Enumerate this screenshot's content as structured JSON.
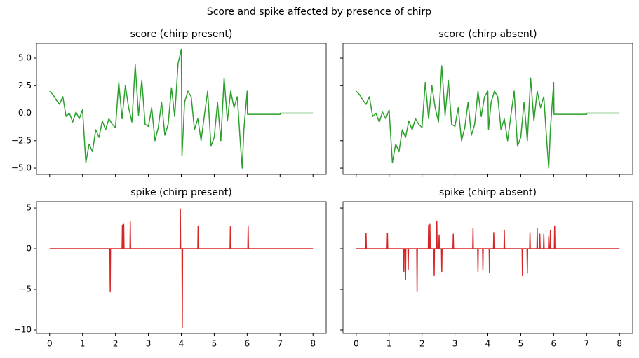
{
  "suptitle": "Score and spike affected by presence of chirp",
  "chart_data": [
    {
      "type": "line",
      "title": "score (chirp present)",
      "xlim": [
        -0.4,
        8.4
      ],
      "ylim": [
        -5.57,
        6.34
      ],
      "xticks": [
        0,
        1,
        2,
        3,
        4,
        5,
        6,
        7,
        8
      ],
      "yticks": [
        {
          "value": -5,
          "label": "−5.0"
        },
        {
          "value": -2.5,
          "label": "−2.5"
        },
        {
          "value": 0,
          "label": "0.0"
        },
        {
          "value": 2.5,
          "label": "2.5"
        },
        {
          "value": 5,
          "label": "5.0"
        }
      ],
      "tick_labels": {
        "x": false,
        "y": true
      },
      "series": [
        {
          "color": "#2ca02c",
          "x": [
            0,
            0.1,
            0.2,
            0.3,
            0.4,
            0.5,
            0.6,
            0.7,
            0.8,
            0.9,
            1.0,
            1.1,
            1.2,
            1.3,
            1.4,
            1.5,
            1.6,
            1.7,
            1.8,
            1.9,
            2.0,
            2.1,
            2.2,
            2.3,
            2.4,
            2.5,
            2.6,
            2.7,
            2.8,
            2.9,
            3.0,
            3.1,
            3.2,
            3.3,
            3.4,
            3.5,
            3.6,
            3.7,
            3.8,
            3.9,
            4.0,
            4.02,
            4.1,
            4.2,
            4.3,
            4.4,
            4.5,
            4.6,
            4.7,
            4.8,
            4.9,
            5.0,
            5.1,
            5.2,
            5.3,
            5.4,
            5.5,
            5.6,
            5.7,
            5.8,
            5.85,
            5.9,
            6.0,
            6.01,
            7.0,
            7.01,
            8.0
          ],
          "values": [
            2.0,
            1.7,
            1.2,
            0.8,
            1.5,
            -0.3,
            0.0,
            -0.8,
            0.1,
            -0.5,
            0.3,
            -4.5,
            -2.8,
            -3.5,
            -1.5,
            -2.2,
            -0.7,
            -1.5,
            -0.5,
            -1.0,
            -1.3,
            2.8,
            -0.5,
            2.5,
            0.5,
            -0.8,
            4.4,
            -0.2,
            3.0,
            -1.0,
            -1.2,
            0.5,
            -2.5,
            -1.3,
            1.0,
            -2.0,
            -1.0,
            2.3,
            -0.3,
            4.5,
            5.8,
            -3.9,
            1.0,
            2.0,
            1.5,
            -1.5,
            -0.5,
            -2.5,
            -0.2,
            2.0,
            -3.0,
            -2.2,
            1.0,
            -2.5,
            3.2,
            -0.7,
            2.0,
            0.5,
            1.5,
            -3.0,
            -5.0,
            -1.5,
            2.0,
            -0.1,
            -0.1,
            0.0,
            0.0
          ]
        }
      ]
    },
    {
      "type": "line",
      "title": "score (chirp absent)",
      "xlim": [
        -0.4,
        8.4
      ],
      "ylim": [
        -5.57,
        6.34
      ],
      "xticks": [
        0,
        1,
        2,
        3,
        4,
        5,
        6,
        7,
        8
      ],
      "yticks": [
        -5,
        -2.5,
        0,
        2.5,
        5
      ],
      "tick_labels": {
        "x": false,
        "y": false
      },
      "series": [
        {
          "color": "#2ca02c",
          "x": [
            0,
            0.1,
            0.2,
            0.3,
            0.4,
            0.5,
            0.6,
            0.7,
            0.8,
            0.9,
            1.0,
            1.1,
            1.2,
            1.3,
            1.4,
            1.5,
            1.6,
            1.7,
            1.8,
            1.9,
            2.0,
            2.1,
            2.2,
            2.3,
            2.4,
            2.5,
            2.6,
            2.7,
            2.8,
            2.9,
            3.0,
            3.1,
            3.2,
            3.3,
            3.4,
            3.5,
            3.6,
            3.7,
            3.8,
            3.9,
            4.0,
            4.02,
            4.1,
            4.2,
            4.3,
            4.4,
            4.5,
            4.6,
            4.7,
            4.8,
            4.9,
            5.0,
            5.1,
            5.2,
            5.3,
            5.4,
            5.5,
            5.6,
            5.7,
            5.8,
            5.85,
            5.9,
            6.0,
            6.01,
            7.0,
            7.01,
            8.0
          ],
          "values": [
            2.0,
            1.7,
            1.2,
            0.8,
            1.5,
            -0.3,
            0.0,
            -0.8,
            0.1,
            -0.5,
            0.3,
            -4.5,
            -2.8,
            -3.5,
            -1.5,
            -2.2,
            -0.7,
            -1.5,
            -0.5,
            -1.0,
            -1.3,
            2.8,
            -0.5,
            2.5,
            0.5,
            -0.8,
            4.3,
            -0.2,
            3.0,
            -1.0,
            -1.2,
            0.5,
            -2.5,
            -1.3,
            1.0,
            -2.0,
            -1.0,
            2.0,
            -0.3,
            1.5,
            2.0,
            -1.5,
            1.0,
            2.0,
            1.5,
            -1.5,
            -0.5,
            -2.5,
            -0.2,
            2.0,
            -3.0,
            -2.2,
            1.0,
            -2.5,
            3.2,
            -0.7,
            2.0,
            0.5,
            1.5,
            -3.0,
            -5.0,
            -1.5,
            2.8,
            -0.1,
            -0.1,
            0.0,
            0.0
          ]
        }
      ]
    },
    {
      "type": "line",
      "title": "spike (chirp present)",
      "xlim": [
        -0.4,
        8.4
      ],
      "ylim": [
        -10.43,
        5.78
      ],
      "xticks": [
        0,
        1,
        2,
        3,
        4,
        5,
        6,
        7,
        8
      ],
      "yticks": [
        {
          "value": -10,
          "label": "−10"
        },
        {
          "value": -5,
          "label": "−5"
        },
        0,
        5
      ],
      "tick_labels": {
        "x": true,
        "y": true
      },
      "series": [
        {
          "color": "#d62728",
          "x": [
            0,
            1.83,
            1.84,
            1.85,
            2.2,
            2.21,
            2.22,
            2.24,
            2.25,
            2.26,
            2.44,
            2.45,
            2.46,
            3.96,
            3.97,
            3.98,
            4.02,
            4.03,
            4.04,
            4.5,
            4.51,
            4.52,
            5.48,
            5.49,
            5.5,
            6.02,
            6.03,
            6.04,
            8
          ],
          "values": [
            0,
            0,
            -5.3,
            0,
            0,
            2.9,
            0,
            0,
            3.0,
            0,
            0,
            3.4,
            0,
            0,
            4.9,
            0,
            0,
            -9.7,
            0,
            0,
            2.8,
            0,
            0,
            2.7,
            0,
            0,
            2.8,
            0,
            0
          ]
        }
      ]
    },
    {
      "type": "line",
      "title": "spike (chirp absent)",
      "xlim": [
        -0.4,
        8.4
      ],
      "ylim": [
        -10.43,
        5.78
      ],
      "xticks": [
        0,
        1,
        2,
        3,
        4,
        5,
        6,
        7,
        8
      ],
      "yticks": [
        -10,
        -5,
        0,
        5
      ],
      "tick_labels": {
        "x": true,
        "y": false
      },
      "series": [
        {
          "color": "#d62728",
          "x": [
            0,
            0.29,
            0.3,
            0.31,
            0.94,
            0.95,
            0.96,
            1.44,
            1.45,
            1.46,
            1.49,
            1.5,
            1.51,
            1.57,
            1.58,
            1.59,
            1.84,
            1.85,
            1.86,
            2.19,
            2.2,
            2.21,
            2.23,
            2.24,
            2.25,
            2.36,
            2.37,
            2.38,
            2.44,
            2.45,
            2.46,
            2.51,
            2.52,
            2.53,
            2.59,
            2.6,
            2.61,
            2.94,
            2.95,
            2.96,
            3.54,
            3.55,
            3.56,
            3.69,
            3.7,
            3.71,
            3.84,
            3.85,
            3.86,
            4.04,
            4.05,
            4.06,
            4.17,
            4.18,
            4.19,
            4.49,
            4.5,
            4.51,
            5.04,
            5.05,
            5.06,
            5.19,
            5.2,
            5.21,
            5.27,
            5.28,
            5.29,
            5.49,
            5.5,
            5.51,
            5.57,
            5.58,
            5.59,
            5.69,
            5.7,
            5.71,
            5.84,
            5.85,
            5.86,
            5.89,
            5.9,
            5.91,
            6.02,
            6.03,
            6.04,
            8
          ],
          "values": [
            0,
            0,
            1.9,
            0,
            0,
            1.9,
            0,
            0,
            -2.8,
            0,
            0,
            -3.8,
            0,
            0,
            -2.6,
            0,
            0,
            -5.3,
            0,
            0,
            2.9,
            0,
            0,
            3.0,
            0,
            0,
            -3.3,
            0,
            0,
            3.4,
            0,
            0,
            1.7,
            0,
            0,
            -2.8,
            0,
            0,
            1.8,
            0,
            0,
            2.5,
            0,
            0,
            -2.8,
            0,
            0,
            -2.6,
            0,
            0,
            -2.9,
            0,
            0,
            2.0,
            0,
            0,
            2.3,
            0,
            0,
            -3.3,
            0,
            0,
            -3.0,
            0,
            0,
            2.0,
            0,
            0,
            2.5,
            0,
            0,
            1.8,
            0,
            0,
            1.8,
            0,
            0,
            1.5,
            0,
            0,
            2.2,
            0,
            0,
            2.8,
            0,
            0
          ]
        }
      ]
    }
  ]
}
